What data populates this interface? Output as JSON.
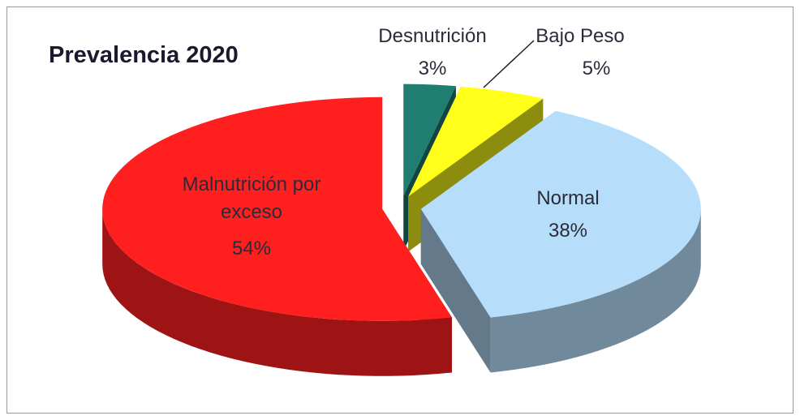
{
  "chart_data": {
    "type": "pie3d",
    "title": "Prevalencia 2020",
    "categories": [
      "Desnutrición",
      "Bajo Peso",
      "Normal",
      "Malnutrición por exceso"
    ],
    "values": [
      3,
      5,
      38,
      54
    ],
    "value_labels": [
      "3%",
      "5%",
      "38%",
      "54%"
    ],
    "colors": [
      "#1f7d72",
      "#ffff1a",
      "#b6defa",
      "#ff1f1f"
    ]
  }
}
